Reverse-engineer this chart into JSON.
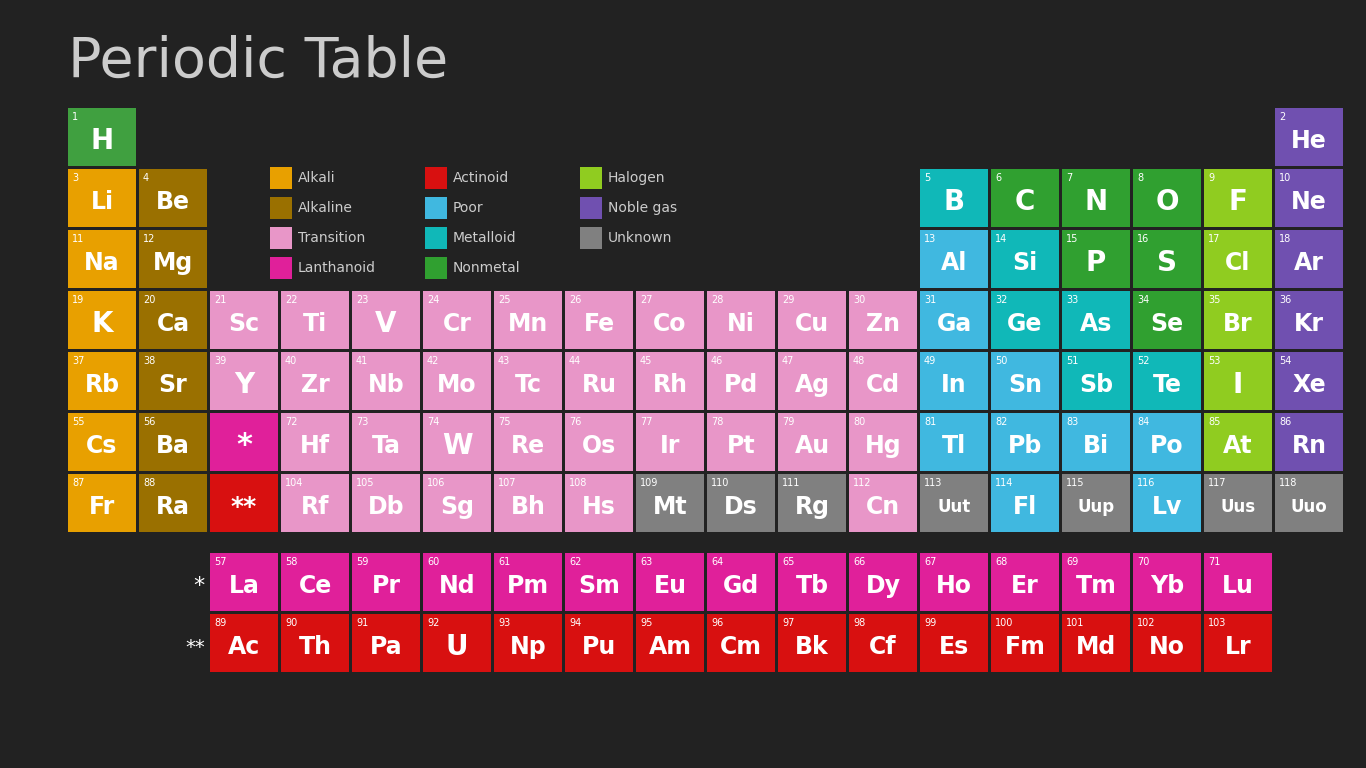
{
  "title": "Periodic Table",
  "background_color": "#222222",
  "title_color": "#cccccc",
  "text_color": "#ffffff",
  "colors": {
    "alkali": "#e8a000",
    "alkaline": "#9a7000",
    "transition": "#e896c8",
    "lanthanoid": "#e0209a",
    "actinoid": "#d81010",
    "poor": "#40b8e0",
    "metalloid": "#10b8b8",
    "nonmetal": "#30a030",
    "halogen": "#90cc20",
    "noble_gas": "#7050b0",
    "unknown": "#808080",
    "hydrogen": "#40a040"
  },
  "elements": [
    {
      "symbol": "H",
      "number": 1,
      "row": 1,
      "col": 1,
      "type": "hydrogen"
    },
    {
      "symbol": "He",
      "number": 2,
      "row": 1,
      "col": 18,
      "type": "noble_gas"
    },
    {
      "symbol": "Li",
      "number": 3,
      "row": 2,
      "col": 1,
      "type": "alkali"
    },
    {
      "symbol": "Be",
      "number": 4,
      "row": 2,
      "col": 2,
      "type": "alkaline"
    },
    {
      "symbol": "B",
      "number": 5,
      "row": 2,
      "col": 13,
      "type": "metalloid"
    },
    {
      "symbol": "C",
      "number": 6,
      "row": 2,
      "col": 14,
      "type": "nonmetal"
    },
    {
      "symbol": "N",
      "number": 7,
      "row": 2,
      "col": 15,
      "type": "nonmetal"
    },
    {
      "symbol": "O",
      "number": 8,
      "row": 2,
      "col": 16,
      "type": "nonmetal"
    },
    {
      "symbol": "F",
      "number": 9,
      "row": 2,
      "col": 17,
      "type": "halogen"
    },
    {
      "symbol": "Ne",
      "number": 10,
      "row": 2,
      "col": 18,
      "type": "noble_gas"
    },
    {
      "symbol": "Na",
      "number": 11,
      "row": 3,
      "col": 1,
      "type": "alkali"
    },
    {
      "symbol": "Mg",
      "number": 12,
      "row": 3,
      "col": 2,
      "type": "alkaline"
    },
    {
      "symbol": "Al",
      "number": 13,
      "row": 3,
      "col": 13,
      "type": "poor"
    },
    {
      "symbol": "Si",
      "number": 14,
      "row": 3,
      "col": 14,
      "type": "metalloid"
    },
    {
      "symbol": "P",
      "number": 15,
      "row": 3,
      "col": 15,
      "type": "nonmetal"
    },
    {
      "symbol": "S",
      "number": 16,
      "row": 3,
      "col": 16,
      "type": "nonmetal"
    },
    {
      "symbol": "Cl",
      "number": 17,
      "row": 3,
      "col": 17,
      "type": "halogen"
    },
    {
      "symbol": "Ar",
      "number": 18,
      "row": 3,
      "col": 18,
      "type": "noble_gas"
    },
    {
      "symbol": "K",
      "number": 19,
      "row": 4,
      "col": 1,
      "type": "alkali"
    },
    {
      "symbol": "Ca",
      "number": 20,
      "row": 4,
      "col": 2,
      "type": "alkaline"
    },
    {
      "symbol": "Sc",
      "number": 21,
      "row": 4,
      "col": 3,
      "type": "transition"
    },
    {
      "symbol": "Ti",
      "number": 22,
      "row": 4,
      "col": 4,
      "type": "transition"
    },
    {
      "symbol": "V",
      "number": 23,
      "row": 4,
      "col": 5,
      "type": "transition"
    },
    {
      "symbol": "Cr",
      "number": 24,
      "row": 4,
      "col": 6,
      "type": "transition"
    },
    {
      "symbol": "Mn",
      "number": 25,
      "row": 4,
      "col": 7,
      "type": "transition"
    },
    {
      "symbol": "Fe",
      "number": 26,
      "row": 4,
      "col": 8,
      "type": "transition"
    },
    {
      "symbol": "Co",
      "number": 27,
      "row": 4,
      "col": 9,
      "type": "transition"
    },
    {
      "symbol": "Ni",
      "number": 28,
      "row": 4,
      "col": 10,
      "type": "transition"
    },
    {
      "symbol": "Cu",
      "number": 29,
      "row": 4,
      "col": 11,
      "type": "transition"
    },
    {
      "symbol": "Zn",
      "number": 30,
      "row": 4,
      "col": 12,
      "type": "transition"
    },
    {
      "symbol": "Ga",
      "number": 31,
      "row": 4,
      "col": 13,
      "type": "poor"
    },
    {
      "symbol": "Ge",
      "number": 32,
      "row": 4,
      "col": 14,
      "type": "metalloid"
    },
    {
      "symbol": "As",
      "number": 33,
      "row": 4,
      "col": 15,
      "type": "metalloid"
    },
    {
      "symbol": "Se",
      "number": 34,
      "row": 4,
      "col": 16,
      "type": "nonmetal"
    },
    {
      "symbol": "Br",
      "number": 35,
      "row": 4,
      "col": 17,
      "type": "halogen"
    },
    {
      "symbol": "Kr",
      "number": 36,
      "row": 4,
      "col": 18,
      "type": "noble_gas"
    },
    {
      "symbol": "Rb",
      "number": 37,
      "row": 5,
      "col": 1,
      "type": "alkali"
    },
    {
      "symbol": "Sr",
      "number": 38,
      "row": 5,
      "col": 2,
      "type": "alkaline"
    },
    {
      "symbol": "Y",
      "number": 39,
      "row": 5,
      "col": 3,
      "type": "transition"
    },
    {
      "symbol": "Zr",
      "number": 40,
      "row": 5,
      "col": 4,
      "type": "transition"
    },
    {
      "symbol": "Nb",
      "number": 41,
      "row": 5,
      "col": 5,
      "type": "transition"
    },
    {
      "symbol": "Mo",
      "number": 42,
      "row": 5,
      "col": 6,
      "type": "transition"
    },
    {
      "symbol": "Tc",
      "number": 43,
      "row": 5,
      "col": 7,
      "type": "transition"
    },
    {
      "symbol": "Ru",
      "number": 44,
      "row": 5,
      "col": 8,
      "type": "transition"
    },
    {
      "symbol": "Rh",
      "number": 45,
      "row": 5,
      "col": 9,
      "type": "transition"
    },
    {
      "symbol": "Pd",
      "number": 46,
      "row": 5,
      "col": 10,
      "type": "transition"
    },
    {
      "symbol": "Ag",
      "number": 47,
      "row": 5,
      "col": 11,
      "type": "transition"
    },
    {
      "symbol": "Cd",
      "number": 48,
      "row": 5,
      "col": 12,
      "type": "transition"
    },
    {
      "symbol": "In",
      "number": 49,
      "row": 5,
      "col": 13,
      "type": "poor"
    },
    {
      "symbol": "Sn",
      "number": 50,
      "row": 5,
      "col": 14,
      "type": "poor"
    },
    {
      "symbol": "Sb",
      "number": 51,
      "row": 5,
      "col": 15,
      "type": "metalloid"
    },
    {
      "symbol": "Te",
      "number": 52,
      "row": 5,
      "col": 16,
      "type": "metalloid"
    },
    {
      "symbol": "I",
      "number": 53,
      "row": 5,
      "col": 17,
      "type": "halogen"
    },
    {
      "symbol": "Xe",
      "number": 54,
      "row": 5,
      "col": 18,
      "type": "noble_gas"
    },
    {
      "symbol": "Cs",
      "number": 55,
      "row": 6,
      "col": 1,
      "type": "alkali"
    },
    {
      "symbol": "Ba",
      "number": 56,
      "row": 6,
      "col": 2,
      "type": "alkaline"
    },
    {
      "symbol": "Hf",
      "number": 72,
      "row": 6,
      "col": 4,
      "type": "transition"
    },
    {
      "symbol": "Ta",
      "number": 73,
      "row": 6,
      "col": 5,
      "type": "transition"
    },
    {
      "symbol": "W",
      "number": 74,
      "row": 6,
      "col": 6,
      "type": "transition"
    },
    {
      "symbol": "Re",
      "number": 75,
      "row": 6,
      "col": 7,
      "type": "transition"
    },
    {
      "symbol": "Os",
      "number": 76,
      "row": 6,
      "col": 8,
      "type": "transition"
    },
    {
      "symbol": "Ir",
      "number": 77,
      "row": 6,
      "col": 9,
      "type": "transition"
    },
    {
      "symbol": "Pt",
      "number": 78,
      "row": 6,
      "col": 10,
      "type": "transition"
    },
    {
      "symbol": "Au",
      "number": 79,
      "row": 6,
      "col": 11,
      "type": "transition"
    },
    {
      "symbol": "Hg",
      "number": 80,
      "row": 6,
      "col": 12,
      "type": "transition"
    },
    {
      "symbol": "Tl",
      "number": 81,
      "row": 6,
      "col": 13,
      "type": "poor"
    },
    {
      "symbol": "Pb",
      "number": 82,
      "row": 6,
      "col": 14,
      "type": "poor"
    },
    {
      "symbol": "Bi",
      "number": 83,
      "row": 6,
      "col": 15,
      "type": "poor"
    },
    {
      "symbol": "Po",
      "number": 84,
      "row": 6,
      "col": 16,
      "type": "poor"
    },
    {
      "symbol": "At",
      "number": 85,
      "row": 6,
      "col": 17,
      "type": "halogen"
    },
    {
      "symbol": "Rn",
      "number": 86,
      "row": 6,
      "col": 18,
      "type": "noble_gas"
    },
    {
      "symbol": "Fr",
      "number": 87,
      "row": 7,
      "col": 1,
      "type": "alkali"
    },
    {
      "symbol": "Ra",
      "number": 88,
      "row": 7,
      "col": 2,
      "type": "alkaline"
    },
    {
      "symbol": "Rf",
      "number": 104,
      "row": 7,
      "col": 4,
      "type": "transition"
    },
    {
      "symbol": "Db",
      "number": 105,
      "row": 7,
      "col": 5,
      "type": "transition"
    },
    {
      "symbol": "Sg",
      "number": 106,
      "row": 7,
      "col": 6,
      "type": "transition"
    },
    {
      "symbol": "Bh",
      "number": 107,
      "row": 7,
      "col": 7,
      "type": "transition"
    },
    {
      "symbol": "Hs",
      "number": 108,
      "row": 7,
      "col": 8,
      "type": "transition"
    },
    {
      "symbol": "Mt",
      "number": 109,
      "row": 7,
      "col": 9,
      "type": "unknown"
    },
    {
      "symbol": "Ds",
      "number": 110,
      "row": 7,
      "col": 10,
      "type": "unknown"
    },
    {
      "symbol": "Rg",
      "number": 111,
      "row": 7,
      "col": 11,
      "type": "unknown"
    },
    {
      "symbol": "Cn",
      "number": 112,
      "row": 7,
      "col": 12,
      "type": "transition"
    },
    {
      "symbol": "Uut",
      "number": 113,
      "row": 7,
      "col": 13,
      "type": "unknown"
    },
    {
      "symbol": "Fl",
      "number": 114,
      "row": 7,
      "col": 14,
      "type": "poor"
    },
    {
      "symbol": "Uup",
      "number": 115,
      "row": 7,
      "col": 15,
      "type": "unknown"
    },
    {
      "symbol": "Lv",
      "number": 116,
      "row": 7,
      "col": 16,
      "type": "poor"
    },
    {
      "symbol": "Uus",
      "number": 117,
      "row": 7,
      "col": 17,
      "type": "unknown"
    },
    {
      "symbol": "Uuo",
      "number": 118,
      "row": 7,
      "col": 18,
      "type": "unknown"
    },
    {
      "symbol": "La",
      "number": 57,
      "row": 9,
      "col": 3,
      "type": "lanthanoid"
    },
    {
      "symbol": "Ce",
      "number": 58,
      "row": 9,
      "col": 4,
      "type": "lanthanoid"
    },
    {
      "symbol": "Pr",
      "number": 59,
      "row": 9,
      "col": 5,
      "type": "lanthanoid"
    },
    {
      "symbol": "Nd",
      "number": 60,
      "row": 9,
      "col": 6,
      "type": "lanthanoid"
    },
    {
      "symbol": "Pm",
      "number": 61,
      "row": 9,
      "col": 7,
      "type": "lanthanoid"
    },
    {
      "symbol": "Sm",
      "number": 62,
      "row": 9,
      "col": 8,
      "type": "lanthanoid"
    },
    {
      "symbol": "Eu",
      "number": 63,
      "row": 9,
      "col": 9,
      "type": "lanthanoid"
    },
    {
      "symbol": "Gd",
      "number": 64,
      "row": 9,
      "col": 10,
      "type": "lanthanoid"
    },
    {
      "symbol": "Tb",
      "number": 65,
      "row": 9,
      "col": 11,
      "type": "lanthanoid"
    },
    {
      "symbol": "Dy",
      "number": 66,
      "row": 9,
      "col": 12,
      "type": "lanthanoid"
    },
    {
      "symbol": "Ho",
      "number": 67,
      "row": 9,
      "col": 13,
      "type": "lanthanoid"
    },
    {
      "symbol": "Er",
      "number": 68,
      "row": 9,
      "col": 14,
      "type": "lanthanoid"
    },
    {
      "symbol": "Tm",
      "number": 69,
      "row": 9,
      "col": 15,
      "type": "lanthanoid"
    },
    {
      "symbol": "Yb",
      "number": 70,
      "row": 9,
      "col": 16,
      "type": "lanthanoid"
    },
    {
      "symbol": "Lu",
      "number": 71,
      "row": 9,
      "col": 17,
      "type": "lanthanoid"
    },
    {
      "symbol": "Ac",
      "number": 89,
      "row": 10,
      "col": 3,
      "type": "actinoid"
    },
    {
      "symbol": "Th",
      "number": 90,
      "row": 10,
      "col": 4,
      "type": "actinoid"
    },
    {
      "symbol": "Pa",
      "number": 91,
      "row": 10,
      "col": 5,
      "type": "actinoid"
    },
    {
      "symbol": "U",
      "number": 92,
      "row": 10,
      "col": 6,
      "type": "actinoid"
    },
    {
      "symbol": "Np",
      "number": 93,
      "row": 10,
      "col": 7,
      "type": "actinoid"
    },
    {
      "symbol": "Pu",
      "number": 94,
      "row": 10,
      "col": 8,
      "type": "actinoid"
    },
    {
      "symbol": "Am",
      "number": 95,
      "row": 10,
      "col": 9,
      "type": "actinoid"
    },
    {
      "symbol": "Cm",
      "number": 96,
      "row": 10,
      "col": 10,
      "type": "actinoid"
    },
    {
      "symbol": "Bk",
      "number": 97,
      "row": 10,
      "col": 11,
      "type": "actinoid"
    },
    {
      "symbol": "Cf",
      "number": 98,
      "row": 10,
      "col": 12,
      "type": "actinoid"
    },
    {
      "symbol": "Es",
      "number": 99,
      "row": 10,
      "col": 13,
      "type": "actinoid"
    },
    {
      "symbol": "Fm",
      "number": 100,
      "row": 10,
      "col": 14,
      "type": "actinoid"
    },
    {
      "symbol": "Md",
      "number": 101,
      "row": 10,
      "col": 15,
      "type": "actinoid"
    },
    {
      "symbol": "No",
      "number": 102,
      "row": 10,
      "col": 16,
      "type": "actinoid"
    },
    {
      "symbol": "Lr",
      "number": 103,
      "row": 10,
      "col": 17,
      "type": "actinoid"
    }
  ],
  "legend_col1": [
    {
      "label": "Alkali",
      "color": "#e8a000"
    },
    {
      "label": "Alkaline",
      "color": "#9a7000"
    },
    {
      "label": "Transition",
      "color": "#e896c8"
    },
    {
      "label": "Lanthanoid",
      "color": "#e0209a"
    }
  ],
  "legend_col2": [
    {
      "label": "Actinoid",
      "color": "#d81010"
    },
    {
      "label": "Poor",
      "color": "#40b8e0"
    },
    {
      "label": "Metalloid",
      "color": "#10b8b8"
    },
    {
      "label": "Nonmetal",
      "color": "#30a030"
    }
  ],
  "legend_col3": [
    {
      "label": "Halogen",
      "color": "#90cc20"
    },
    {
      "label": "Noble gas",
      "color": "#7050b0"
    },
    {
      "label": "Unknown",
      "color": "#808080"
    }
  ]
}
